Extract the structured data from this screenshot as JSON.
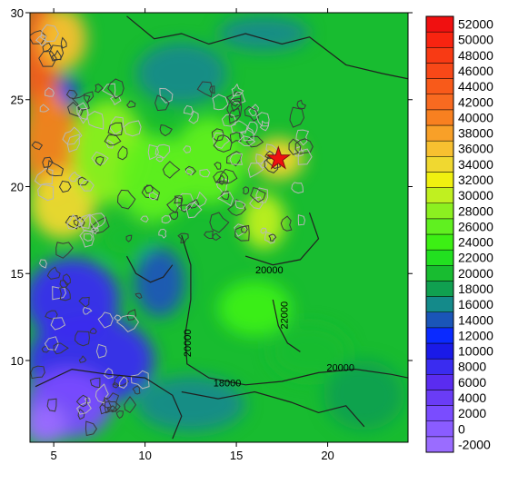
{
  "chart_data": {
    "type": "heatmap",
    "title": "",
    "xlabel": "",
    "ylabel": "",
    "xlim": [
      3.7,
      24.4
    ],
    "ylim": [
      5.3,
      30
    ],
    "xticks": [
      5,
      10,
      15,
      20
    ],
    "yticks": [
      10,
      15,
      20,
      25,
      30
    ],
    "colorbar": {
      "placement": "right",
      "levels": [
        -2000,
        0,
        2000,
        4000,
        6000,
        8000,
        10000,
        12000,
        14000,
        16000,
        18000,
        20000,
        22000,
        24000,
        26000,
        28000,
        30000,
        32000,
        34000,
        36000,
        38000,
        40000,
        42000,
        44000,
        46000,
        48000,
        50000,
        52000
      ],
      "colors": [
        "#9a6cff",
        "#8a5cff",
        "#7a4cff",
        "#6a3cf6",
        "#5a2cf0",
        "#3a2cf0",
        "#1a1ae8",
        "#0a2aff",
        "#1a55b8",
        "#148a8a",
        "#10a050",
        "#18bc30",
        "#22e020",
        "#3cf014",
        "#60f020",
        "#8cf020",
        "#c0f020",
        "#f0f010",
        "#f0d830",
        "#f8c030",
        "#f8a028",
        "#f88020",
        "#f86a20",
        "#f85a1a",
        "#f84818",
        "#f83a14",
        "#f82410",
        "#f01010"
      ]
    },
    "contour_labels": [
      {
        "text": "20000",
        "x": 16.8,
        "y": 15.0
      },
      {
        "text": "22000",
        "x": 17.8,
        "y": 12.6
      },
      {
        "text": "20000",
        "x": 12.5,
        "y": 11.0
      },
      {
        "text": "20000",
        "x": 20.7,
        "y": 9.4
      },
      {
        "text": "18000",
        "x": 14.5,
        "y": 8.5
      }
    ],
    "field_blobs": [
      {
        "x": 4.2,
        "y": 27.5,
        "rx": 1.2,
        "ry": 3.5,
        "value": 44000
      },
      {
        "x": 5.5,
        "y": 28.5,
        "rx": 1.3,
        "ry": 1.8,
        "value": 36000
      },
      {
        "x": 4.8,
        "y": 22.5,
        "rx": 1.6,
        "ry": 3.0,
        "value": 40000
      },
      {
        "x": 5.5,
        "y": 19.0,
        "rx": 1.8,
        "ry": 2.0,
        "value": 34000
      },
      {
        "x": 5.8,
        "y": 25.5,
        "rx": 0.5,
        "ry": 0.8,
        "value": 12000
      },
      {
        "x": 8.0,
        "y": 22.0,
        "rx": 2.0,
        "ry": 3.0,
        "value": 28000
      },
      {
        "x": 10.5,
        "y": 20.5,
        "rx": 2.0,
        "ry": 2.5,
        "value": 26000
      },
      {
        "x": 13.5,
        "y": 21.5,
        "rx": 2.0,
        "ry": 2.5,
        "value": 26000
      },
      {
        "x": 17.3,
        "y": 21.6,
        "rx": 0.7,
        "ry": 0.6,
        "value": 52000
      },
      {
        "x": 17.3,
        "y": 21.6,
        "rx": 1.4,
        "ry": 1.2,
        "value": 34000
      },
      {
        "x": 16.5,
        "y": 18.0,
        "rx": 1.2,
        "ry": 1.6,
        "value": 30000
      },
      {
        "x": 12.0,
        "y": 26.5,
        "rx": 2.5,
        "ry": 1.8,
        "value": 16000
      },
      {
        "x": 16.5,
        "y": 28.8,
        "rx": 2.5,
        "ry": 1.0,
        "value": 16000
      },
      {
        "x": 10.8,
        "y": 14.5,
        "rx": 1.4,
        "ry": 2.0,
        "value": 14000
      },
      {
        "x": 6.0,
        "y": 13.5,
        "rx": 2.6,
        "ry": 2.4,
        "value": 8000
      },
      {
        "x": 7.0,
        "y": 10.0,
        "rx": 3.5,
        "ry": 2.6,
        "value": 8000
      },
      {
        "x": 5.8,
        "y": 7.5,
        "rx": 2.4,
        "ry": 2.0,
        "value": 2000
      },
      {
        "x": 4.5,
        "y": 6.3,
        "rx": 1.2,
        "ry": 1.2,
        "value": -2000
      },
      {
        "x": 12.5,
        "y": 7.5,
        "rx": 3.0,
        "ry": 1.6,
        "value": 16000
      },
      {
        "x": 9.0,
        "y": 17.0,
        "rx": 1.5,
        "ry": 1.2,
        "value": 20000
      },
      {
        "x": 22.0,
        "y": 8.0,
        "rx": 2.2,
        "ry": 2.0,
        "value": 18000
      },
      {
        "x": 19.0,
        "y": 10.5,
        "rx": 2.2,
        "ry": 1.6,
        "value": 20000
      },
      {
        "x": 16.0,
        "y": 13.0,
        "rx": 2.0,
        "ry": 1.6,
        "value": 24000
      }
    ]
  }
}
